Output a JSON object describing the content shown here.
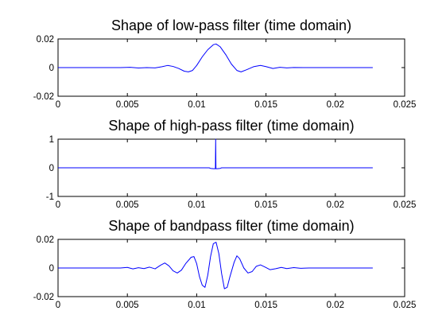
{
  "figure": {
    "background": "#ffffff",
    "line_color": "#0000ff",
    "axis_color": "#000000"
  },
  "chart_data": [
    {
      "type": "line",
      "title": "Shape of low-pass filter (time domain)",
      "xlim": [
        0,
        0.025
      ],
      "ylim": [
        -0.02,
        0.02
      ],
      "xticks": [
        0,
        0.005,
        0.01,
        0.015,
        0.02,
        0.025
      ],
      "xtick_labels": [
        "0",
        "0.005",
        "0.01",
        "0.015",
        "0.02",
        "0.025"
      ],
      "yticks": [
        -0.02,
        0,
        0.02
      ],
      "ytick_labels": [
        "-0.02",
        "0",
        "0.02"
      ],
      "grid": false,
      "series": [
        {
          "color": "#0000ff",
          "points": [
            [
              0,
              0
            ],
            [
              0.0045,
              0
            ],
            [
              0.0052,
              0.0002
            ],
            [
              0.0058,
              -0.0003
            ],
            [
              0.0064,
              0
            ],
            [
              0.007,
              -0.0002
            ],
            [
              0.0075,
              0.0006
            ],
            [
              0.0079,
              0.0015
            ],
            [
              0.0083,
              0.0008
            ],
            [
              0.0087,
              -0.0006
            ],
            [
              0.0091,
              -0.0025
            ],
            [
              0.0094,
              -0.003
            ],
            [
              0.0097,
              -0.002
            ],
            [
              0.01,
              0.0015
            ],
            [
              0.0104,
              0.0075
            ],
            [
              0.0108,
              0.0125
            ],
            [
              0.0112,
              0.016
            ],
            [
              0.0114,
              0.0165
            ],
            [
              0.0117,
              0.0145
            ],
            [
              0.0121,
              0.009
            ],
            [
              0.0125,
              0.0025
            ],
            [
              0.0129,
              -0.002
            ],
            [
              0.0132,
              -0.003
            ],
            [
              0.0136,
              -0.0015
            ],
            [
              0.0141,
              0.0006
            ],
            [
              0.0146,
              0.0015
            ],
            [
              0.015,
              0.0007
            ],
            [
              0.0155,
              -0.0006
            ],
            [
              0.016,
              0.0002
            ],
            [
              0.0165,
              -0.0002
            ],
            [
              0.017,
              0.0001
            ],
            [
              0.0177,
              0
            ],
            [
              0.0227,
              0
            ]
          ]
        }
      ]
    },
    {
      "type": "line",
      "title": "Shape of high-pass filter (time domain)",
      "xlim": [
        0,
        0.025
      ],
      "ylim": [
        -1,
        1
      ],
      "xticks": [
        0,
        0.005,
        0.01,
        0.015,
        0.02,
        0.025
      ],
      "xtick_labels": [
        "0",
        "0.005",
        "0.01",
        "0.015",
        "0.02",
        "0.025"
      ],
      "yticks": [
        -1,
        0,
        1
      ],
      "ytick_labels": [
        "-1",
        "0",
        "1"
      ],
      "grid": false,
      "series": [
        {
          "color": "#0000ff",
          "points": [
            [
              0,
              0
            ],
            [
              0.0109,
              0
            ],
            [
              0.011,
              -0.02
            ],
            [
              0.0112,
              -0.03
            ],
            [
              0.01135,
              -0.03
            ],
            [
              0.01137,
              1
            ],
            [
              0.01139,
              -0.03
            ],
            [
              0.0115,
              -0.03
            ],
            [
              0.0117,
              -0.02
            ],
            [
              0.0118,
              0
            ],
            [
              0.0227,
              0
            ]
          ]
        }
      ]
    },
    {
      "type": "line",
      "title": "Shape of bandpass filter (time domain)",
      "xlim": [
        0,
        0.025
      ],
      "ylim": [
        -0.02,
        0.02
      ],
      "xticks": [
        0,
        0.005,
        0.01,
        0.015,
        0.02,
        0.025
      ],
      "xtick_labels": [
        "0",
        "0.005",
        "0.01",
        "0.015",
        "0.02",
        "0.025"
      ],
      "yticks": [
        -0.02,
        0,
        0.02
      ],
      "ytick_labels": [
        "-0.02",
        "0",
        "0.02"
      ],
      "grid": false,
      "series": [
        {
          "color": "#0000ff",
          "points": [
            [
              0,
              0
            ],
            [
              0.0045,
              0
            ],
            [
              0.005,
              0.0004
            ],
            [
              0.0054,
              -0.0006
            ],
            [
              0.0058,
              0.0002
            ],
            [
              0.0062,
              -0.0004
            ],
            [
              0.0066,
              0.0006
            ],
            [
              0.007,
              -0.0006
            ],
            [
              0.0074,
              0.002
            ],
            [
              0.0077,
              0.0035
            ],
            [
              0.008,
              0.0015
            ],
            [
              0.0083,
              -0.002
            ],
            [
              0.0086,
              -0.0035
            ],
            [
              0.0089,
              -0.0015
            ],
            [
              0.0092,
              0.003
            ],
            [
              0.0096,
              0.0075
            ],
            [
              0.0098,
              0.008
            ],
            [
              0.01,
              0.003
            ],
            [
              0.0102,
              -0.006
            ],
            [
              0.0104,
              -0.012
            ],
            [
              0.0106,
              -0.0135
            ],
            [
              0.0108,
              -0.005
            ],
            [
              0.011,
              0.008
            ],
            [
              0.0112,
              0.017
            ],
            [
              0.0114,
              0.018
            ],
            [
              0.0116,
              0.01
            ],
            [
              0.0118,
              -0.004
            ],
            [
              0.012,
              -0.0145
            ],
            [
              0.0122,
              -0.0135
            ],
            [
              0.0124,
              -0.006
            ],
            [
              0.0127,
              0.004
            ],
            [
              0.0129,
              0.0085
            ],
            [
              0.0131,
              0.0065
            ],
            [
              0.0134,
              0
            ],
            [
              0.0137,
              -0.0035
            ],
            [
              0.014,
              -0.0025
            ],
            [
              0.0143,
              0.0012
            ],
            [
              0.0146,
              0.0022
            ],
            [
              0.0149,
              0.0008
            ],
            [
              0.0153,
              -0.0012
            ],
            [
              0.0157,
              -0.0005
            ],
            [
              0.0161,
              0.0004
            ],
            [
              0.0165,
              -0.0004
            ],
            [
              0.017,
              0.0003
            ],
            [
              0.0175,
              -0.0002
            ],
            [
              0.0181,
              0
            ],
            [
              0.0227,
              0
            ]
          ]
        }
      ]
    }
  ]
}
